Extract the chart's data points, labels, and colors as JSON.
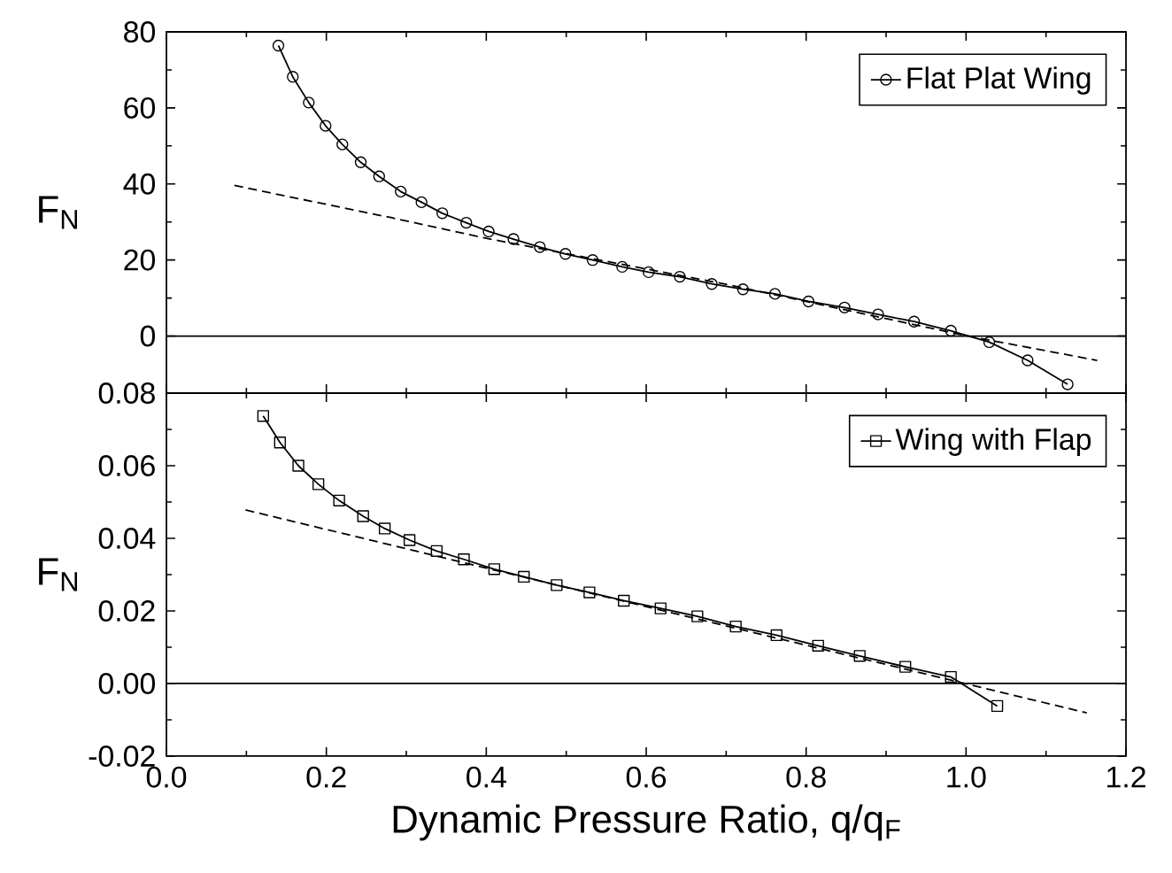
{
  "chart_data": [
    {
      "type": "line",
      "ylabel": "F$_{N}$",
      "xlim": [
        0,
        1.2
      ],
      "ylim": [
        -15,
        80
      ],
      "xticks": [
        {
          "value": 0,
          "label": null
        },
        {
          "value": 0.2,
          "label": null
        },
        {
          "value": 0.4,
          "label": null
        },
        {
          "value": 0.6,
          "label": null
        },
        {
          "value": 0.8,
          "label": null
        },
        {
          "value": 1.0,
          "label": null
        },
        {
          "value": 1.2,
          "label": null
        }
      ],
      "yticks": [
        0,
        20,
        40,
        60,
        80
      ],
      "tick_labels": "y",
      "legend": "top right",
      "ref_lines": [
        {
          "axis": "y",
          "value": 0
        }
      ],
      "series": [
        {
          "name": "Flat Plat Wing",
          "color": "#000000",
          "marker": "circle",
          "line_style": "solid",
          "x": [
            0.14,
            0.158,
            0.178,
            0.199,
            0.22,
            0.243,
            0.266,
            0.293,
            0.319,
            0.345,
            0.375,
            0.403,
            0.434,
            0.467,
            0.499,
            0.533,
            0.57,
            0.603,
            0.642,
            0.682,
            0.721,
            0.761,
            0.803,
            0.848,
            0.89,
            0.935,
            0.981,
            1.029,
            1.077,
            1.127
          ],
          "values": [
            76.4,
            68.2,
            61.4,
            55.3,
            50.4,
            45.7,
            42.0,
            38.0,
            35.2,
            32.3,
            29.8,
            27.5,
            25.5,
            23.4,
            21.6,
            20.0,
            18.2,
            16.8,
            15.6,
            13.7,
            12.3,
            11.1,
            9.1,
            7.5,
            5.7,
            3.8,
            1.4,
            -1.6,
            -6.4,
            -12.7
          ]
        },
        {
          "type": "line",
          "color": "#000000",
          "marker": "none",
          "line_style": "dashed",
          "x": [
            0.085,
            0.282,
            0.4,
            0.7,
            1.002,
            1.164
          ],
          "values": [
            39.6,
            31.1,
            25.7,
            13.6,
            0,
            -6.4
          ]
        }
      ]
    },
    {
      "type": "line",
      "ylabel": "F$_{N}$",
      "xlabel": "Dynamic Pressure Ratio, q/q$_{F}$",
      "xlim": [
        0,
        1.2
      ],
      "ylim": [
        -0.02,
        0.08
      ],
      "xticks": [
        {
          "value": 0,
          "label": "0.0"
        },
        {
          "value": 0.2,
          "label": "0.2"
        },
        {
          "value": 0.4,
          "label": "0.4"
        },
        {
          "value": 0.6,
          "label": "0.6"
        },
        {
          "value": 0.8,
          "label": "0.8"
        },
        {
          "value": 1.0,
          "label": "1.0"
        },
        {
          "value": 1.2,
          "label": "1.2"
        }
      ],
      "yticks": [
        {
          "value": -0.02,
          "label": "-0.02"
        },
        {
          "value": 0,
          "label": "0.00"
        },
        {
          "value": 0.02,
          "label": "0.02"
        },
        {
          "value": 0.04,
          "label": "0.04"
        },
        {
          "value": 0.06,
          "label": "0.06"
        },
        {
          "value": 0.08,
          "label": "0.08"
        }
      ],
      "legend": "top right",
      "ref_lines": [
        {
          "axis": "y",
          "value": 0
        }
      ],
      "series": [
        {
          "name": "Wing with Flap",
          "color": "#000000",
          "marker": "square",
          "line_style": "solid",
          "x": [
            0.121,
            0.142,
            0.165,
            0.19,
            0.216,
            0.246,
            0.273,
            0.304,
            0.338,
            0.372,
            0.41,
            0.447,
            0.488,
            0.529,
            0.572,
            0.618,
            0.664,
            0.712,
            0.763,
            0.815,
            0.867,
            0.924,
            0.981,
            1.039
          ],
          "values": [
            0.0737,
            0.0664,
            0.06,
            0.0549,
            0.0504,
            0.0461,
            0.0427,
            0.0395,
            0.0365,
            0.0342,
            0.0315,
            0.0294,
            0.0271,
            0.0251,
            0.0228,
            0.0207,
            0.0185,
            0.0157,
            0.0133,
            0.0104,
            0.0076,
            0.0046,
            0.0018,
            -0.0062
          ]
        },
        {
          "type": "line",
          "color": "#000000",
          "marker": "none",
          "line_style": "dashed",
          "x": [
            0.099,
            1.151
          ],
          "values": [
            0.0478,
            -0.0081
          ]
        }
      ]
    }
  ]
}
